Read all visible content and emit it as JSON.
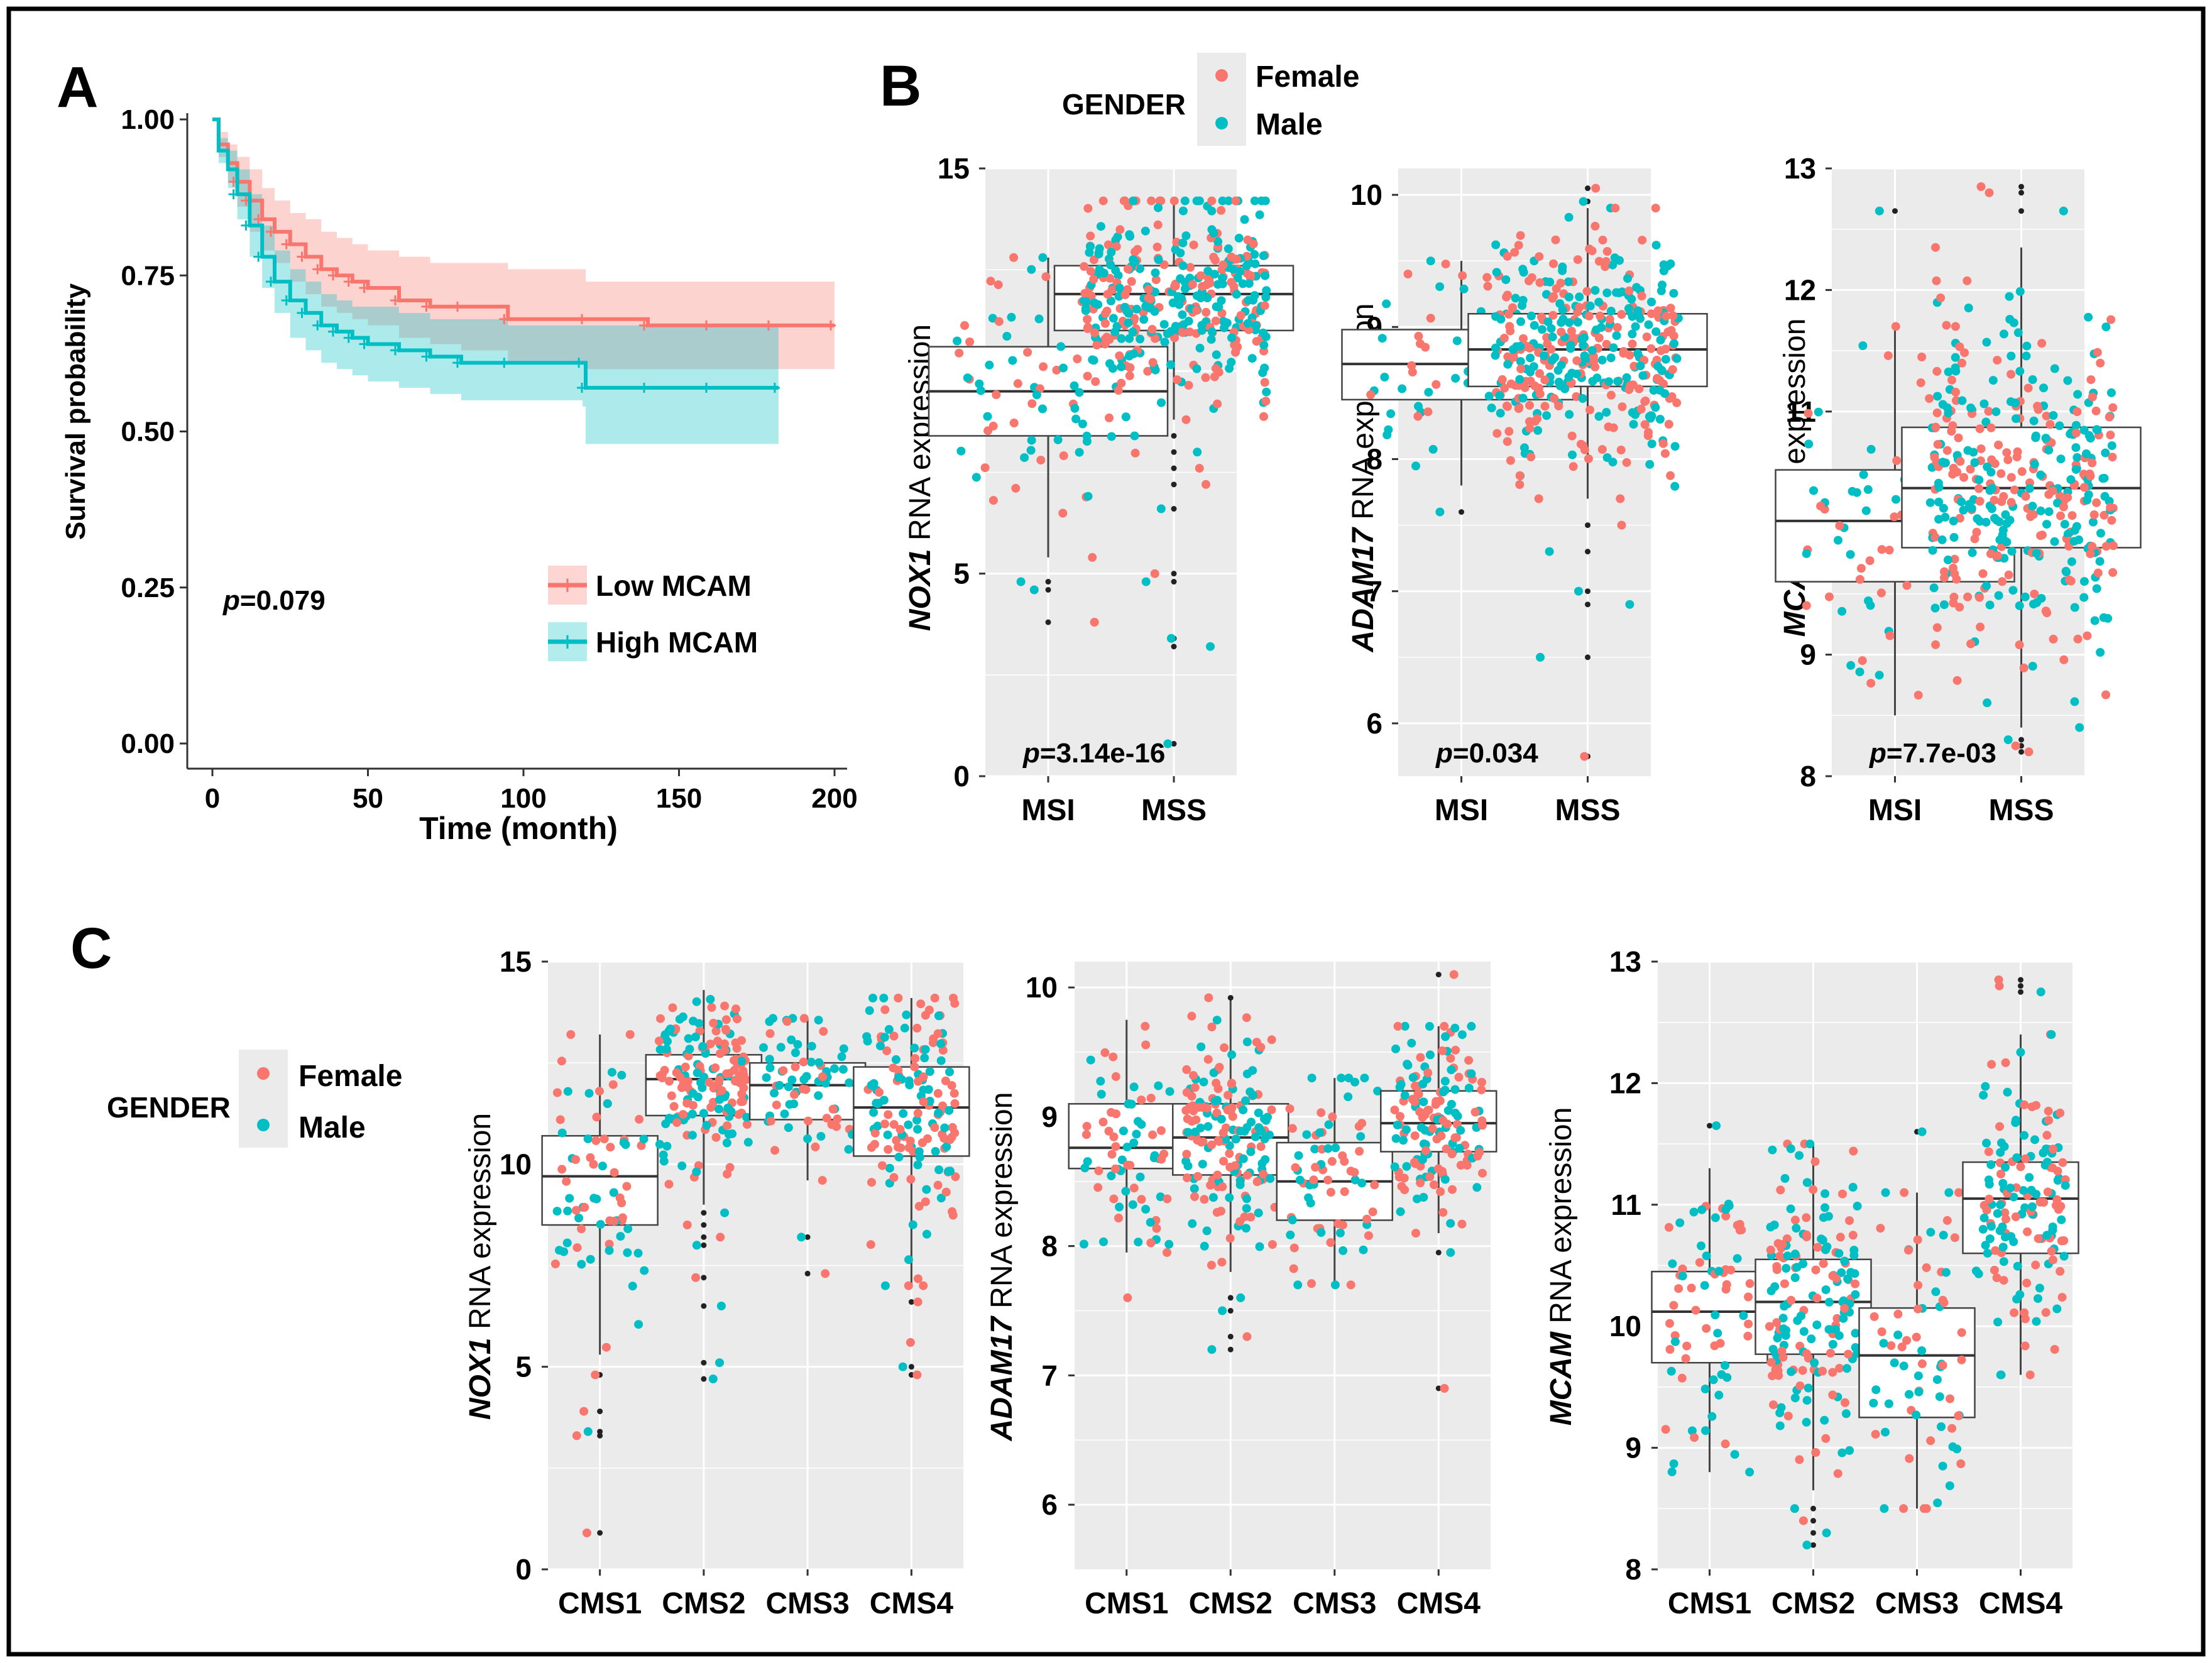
{
  "colors": {
    "female": "#F8766D",
    "male": "#00BFC4",
    "panel_bg": "#EBEBEB",
    "grid": "#FFFFFF",
    "outlier": "#222222"
  },
  "panels": {
    "A": {
      "letter": "A"
    },
    "B": {
      "letter": "B",
      "legend": {
        "title": "GENDER",
        "female": "Female",
        "male": "Male"
      }
    },
    "C": {
      "letter": "C",
      "legend": {
        "title": "GENDER",
        "female": "Female",
        "male": "Male"
      }
    }
  },
  "chart_data": [
    {
      "id": "A",
      "type": "line",
      "title": "",
      "xlabel": "Time (month)",
      "ylabel": "Survival probability",
      "xlim": [
        0,
        200
      ],
      "ylim": [
        0,
        1
      ],
      "xticks": [
        0,
        50,
        100,
        150,
        200
      ],
      "yticks": [
        0.0,
        0.25,
        0.5,
        0.75,
        1.0
      ],
      "ytick_labels": [
        "0.00",
        "0.25",
        "0.50",
        "0.75",
        "1.00"
      ],
      "grid": false,
      "legend_position": "bottom-right",
      "p_value": {
        "prefix": "p",
        "text": "=0.079"
      },
      "series": [
        {
          "name": "Low MCAM",
          "color": "#F8766D",
          "x": [
            0,
            2,
            5,
            8,
            12,
            16,
            20,
            25,
            30,
            35,
            40,
            45,
            50,
            60,
            70,
            80,
            95,
            120,
            140,
            160,
            180,
            200
          ],
          "y": [
            1.0,
            0.96,
            0.93,
            0.9,
            0.87,
            0.84,
            0.82,
            0.8,
            0.78,
            0.76,
            0.75,
            0.74,
            0.73,
            0.71,
            0.7,
            0.7,
            0.68,
            0.68,
            0.67,
            0.67,
            0.67,
            0.67
          ],
          "lower": [
            1.0,
            0.94,
            0.9,
            0.86,
            0.82,
            0.79,
            0.77,
            0.74,
            0.72,
            0.7,
            0.69,
            0.68,
            0.67,
            0.65,
            0.64,
            0.63,
            0.61,
            0.6,
            0.6,
            0.6,
            0.6,
            0.61
          ],
          "upper": [
            1.0,
            0.98,
            0.96,
            0.94,
            0.92,
            0.89,
            0.87,
            0.85,
            0.84,
            0.82,
            0.81,
            0.8,
            0.79,
            0.78,
            0.77,
            0.77,
            0.76,
            0.74,
            0.74,
            0.74,
            0.74,
            0.74
          ]
        },
        {
          "name": "High MCAM",
          "color": "#00BFC4",
          "x": [
            0,
            2,
            5,
            8,
            12,
            16,
            20,
            25,
            30,
            35,
            40,
            45,
            50,
            60,
            70,
            80,
            95,
            119,
            120,
            140,
            160,
            182
          ],
          "y": [
            1.0,
            0.95,
            0.92,
            0.88,
            0.83,
            0.78,
            0.74,
            0.71,
            0.69,
            0.67,
            0.66,
            0.65,
            0.64,
            0.63,
            0.62,
            0.61,
            0.61,
            0.61,
            0.57,
            0.57,
            0.57,
            0.57
          ],
          "lower": [
            1.0,
            0.93,
            0.89,
            0.84,
            0.78,
            0.73,
            0.69,
            0.65,
            0.63,
            0.61,
            0.6,
            0.59,
            0.58,
            0.57,
            0.56,
            0.55,
            0.55,
            0.54,
            0.48,
            0.48,
            0.48,
            0.48
          ],
          "upper": [
            1.0,
            0.97,
            0.95,
            0.92,
            0.88,
            0.83,
            0.79,
            0.76,
            0.74,
            0.72,
            0.71,
            0.7,
            0.7,
            0.69,
            0.68,
            0.68,
            0.67,
            0.67,
            0.67,
            0.67,
            0.67,
            0.67
          ]
        }
      ]
    },
    {
      "id": "B1",
      "type": "box",
      "gene": "NOX1",
      "ylabel_rest": " RNA expression",
      "categories": [
        "MSI",
        "MSS"
      ],
      "ylim": [
        0,
        15
      ],
      "yticks": [
        0,
        5,
        10,
        15
      ],
      "p_value": {
        "prefix": "p",
        "text": "=3.14e-16"
      },
      "boxes": [
        {
          "q1": 8.4,
          "median": 9.5,
          "q3": 10.6,
          "wlo": 5.4,
          "whi": 12.8,
          "n": 70,
          "outliers": [
            4.8,
            4.6,
            3.8
          ]
        },
        {
          "q1": 11.0,
          "median": 11.9,
          "q3": 12.6,
          "wlo": 8.8,
          "whi": 14.2,
          "n": 380,
          "outliers": [
            8.4,
            8.0,
            7.6,
            7.2,
            6.6,
            5.0,
            4.8,
            3.4,
            3.2,
            0.8
          ]
        }
      ]
    },
    {
      "id": "B2",
      "type": "box",
      "gene": "ADAM17",
      "ylabel_rest": " RNA expression",
      "categories": [
        "MSI",
        "MSS"
      ],
      "ylim": [
        5.6,
        10.2
      ],
      "yticks": [
        6,
        7,
        8,
        9,
        10
      ],
      "p_value": {
        "prefix": "p",
        "text": "=0.034"
      },
      "boxes": [
        {
          "q1": 8.45,
          "median": 8.72,
          "q3": 8.98,
          "wlo": 7.8,
          "whi": 9.5,
          "n": 70,
          "outliers": [
            7.6
          ]
        },
        {
          "q1": 8.55,
          "median": 8.83,
          "q3": 9.1,
          "wlo": 7.7,
          "whi": 9.9,
          "n": 380,
          "outliers": [
            10.05,
            9.95,
            7.5,
            7.3,
            7.0,
            6.9,
            6.5,
            5.75
          ]
        }
      ]
    },
    {
      "id": "B3",
      "type": "box",
      "gene": "MCAM",
      "ylabel_rest": " RNA expression",
      "categories": [
        "MSI",
        "MSS"
      ],
      "ylim": [
        8,
        13
      ],
      "yticks": [
        8,
        9,
        10,
        11,
        12,
        13
      ],
      "p_value": {
        "prefix": "p",
        "text": "=7.7e-03"
      },
      "boxes": [
        {
          "q1": 9.6,
          "median": 10.1,
          "q3": 10.52,
          "wlo": 8.5,
          "whi": 11.7,
          "n": 70,
          "outliers": [
            12.65
          ]
        },
        {
          "q1": 9.88,
          "median": 10.37,
          "q3": 10.87,
          "wlo": 8.4,
          "whi": 12.35,
          "n": 380,
          "outliers": [
            12.85,
            12.8,
            12.65,
            8.3,
            8.25,
            8.2
          ]
        }
      ]
    },
    {
      "id": "C1",
      "type": "box",
      "gene": "NOX1",
      "ylabel_rest": " RNA expression",
      "categories": [
        "CMS1",
        "CMS2",
        "CMS3",
        "CMS4"
      ],
      "ylim": [
        0,
        15
      ],
      "yticks": [
        0,
        5,
        10,
        15
      ],
      "boxes": [
        {
          "q1": 8.5,
          "median": 9.7,
          "q3": 10.7,
          "wlo": 5.3,
          "whi": 13.2,
          "n": 70,
          "outliers": [
            4.8,
            3.9,
            3.4,
            3.3,
            0.9
          ]
        },
        {
          "q1": 11.2,
          "median": 12.1,
          "q3": 12.7,
          "wlo": 9.0,
          "whi": 14.3,
          "n": 170,
          "outliers": [
            8.8,
            8.5,
            8.2,
            8.0,
            7.2,
            6.5,
            5.1,
            4.7
          ]
        },
        {
          "q1": 11.1,
          "median": 11.95,
          "q3": 12.5,
          "wlo": 9.6,
          "whi": 13.6,
          "n": 70,
          "outliers": [
            8.2,
            7.3
          ]
        },
        {
          "q1": 10.2,
          "median": 11.4,
          "q3": 12.4,
          "wlo": 7.0,
          "whi": 14.1,
          "n": 150,
          "outliers": [
            6.6,
            5.6,
            5.0,
            4.8
          ]
        }
      ]
    },
    {
      "id": "C2",
      "type": "box",
      "gene": "ADAM17",
      "ylabel_rest": " RNA expression",
      "categories": [
        "CMS1",
        "CMS2",
        "CMS3",
        "CMS4"
      ],
      "ylim": [
        5.5,
        10.2
      ],
      "yticks": [
        6,
        7,
        8,
        9,
        10
      ],
      "boxes": [
        {
          "q1": 8.6,
          "median": 8.76,
          "q3": 9.1,
          "wlo": 7.95,
          "whi": 9.75,
          "n": 70,
          "outliers": [
            7.6
          ]
        },
        {
          "q1": 8.55,
          "median": 8.84,
          "q3": 9.1,
          "wlo": 7.8,
          "whi": 9.9,
          "n": 170,
          "outliers": [
            9.92,
            7.6,
            7.5,
            7.3,
            7.2
          ]
        },
        {
          "q1": 8.2,
          "median": 8.5,
          "q3": 8.8,
          "wlo": 7.7,
          "whi": 9.3,
          "n": 70,
          "outliers": []
        },
        {
          "q1": 8.73,
          "median": 8.95,
          "q3": 9.2,
          "wlo": 8.1,
          "whi": 9.7,
          "n": 150,
          "outliers": [
            10.1,
            7.95,
            6.9
          ]
        }
      ]
    },
    {
      "id": "C3",
      "type": "box",
      "gene": "MCAM",
      "ylabel_rest": " RNA expression",
      "categories": [
        "CMS1",
        "CMS2",
        "CMS3",
        "CMS4"
      ],
      "ylim": [
        8,
        13
      ],
      "yticks": [
        8,
        9,
        10,
        11,
        12,
        13
      ],
      "boxes": [
        {
          "q1": 9.7,
          "median": 10.12,
          "q3": 10.45,
          "wlo": 8.8,
          "whi": 11.3,
          "n": 70,
          "outliers": [
            11.65
          ]
        },
        {
          "q1": 9.77,
          "median": 10.2,
          "q3": 10.55,
          "wlo": 8.65,
          "whi": 11.5,
          "n": 170,
          "outliers": [
            8.5,
            8.4,
            8.3,
            8.2
          ]
        },
        {
          "q1": 9.25,
          "median": 9.76,
          "q3": 10.15,
          "wlo": 8.5,
          "whi": 11.1,
          "n": 70,
          "outliers": [
            11.6
          ]
        },
        {
          "q1": 10.6,
          "median": 11.05,
          "q3": 11.35,
          "wlo": 9.6,
          "whi": 12.4,
          "n": 150,
          "outliers": [
            12.85,
            12.8,
            12.75
          ]
        }
      ]
    }
  ]
}
